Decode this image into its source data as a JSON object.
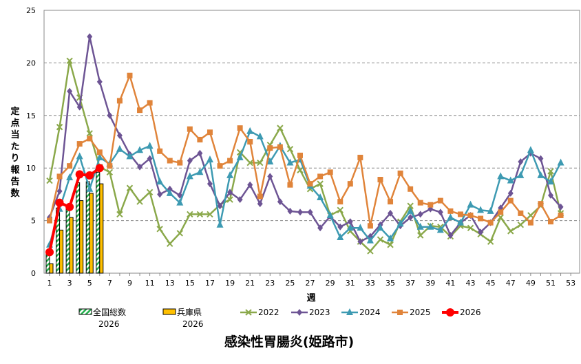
{
  "chart_data": {
    "type": "line",
    "title": "感染性胃腸炎(姫路市)",
    "xlabel": "週",
    "ylabel": "定点当たり報告数",
    "xlim": [
      1,
      53
    ],
    "ylim": [
      0,
      25
    ],
    "yticks": [
      0,
      5,
      10,
      15,
      20,
      25
    ],
    "xticks": [
      1,
      3,
      5,
      7,
      9,
      11,
      13,
      15,
      17,
      19,
      21,
      23,
      25,
      27,
      29,
      31,
      33,
      35,
      37,
      39,
      41,
      43,
      45,
      47,
      49,
      51,
      53
    ],
    "grid": "horizontal dashed",
    "legend": "bottom",
    "bars": [
      {
        "name": "全国総数",
        "sub": "2026",
        "color": "#22b04c",
        "pattern": "hatched",
        "x": [
          1,
          2,
          3,
          4,
          5,
          6
        ],
        "values": [
          1.8,
          6.2,
          6.4,
          8.6,
          8.7,
          9.6
        ]
      },
      {
        "name": "兵庫県",
        "sub": "2026",
        "color": "#ffc000",
        "x": [
          1,
          2,
          3,
          4,
          5,
          6
        ],
        "values": [
          0.9,
          4.1,
          5.3,
          6.9,
          7.6,
          8.5
        ]
      }
    ],
    "series": [
      {
        "name": "2022",
        "color": "#8aa84a",
        "marker": "x",
        "values": [
          8.8,
          13.9,
          20.2,
          16.7,
          13.3,
          10.1,
          9.6,
          5.6,
          8.1,
          6.8,
          7.7,
          4.2,
          2.8,
          3.8,
          5.6,
          5.6,
          5.6,
          6.5,
          7.0,
          11.5,
          10.5,
          10.5,
          12.2,
          13.8,
          11.8,
          9.8,
          8.0,
          8.5,
          5.5,
          6.0,
          4.0,
          3.0,
          2.1,
          3.2,
          2.7,
          4.9,
          6.4,
          3.6,
          4.5,
          4.4,
          3.5,
          4.5,
          4.3,
          3.7,
          3.0,
          5.3,
          4.0,
          4.6,
          5.5,
          6.4,
          9.7,
          5.7
        ]
      },
      {
        "name": "2023",
        "color": "#6d5494",
        "marker": "diamond",
        "values": [
          5.3,
          7.8,
          17.3,
          15.8,
          22.5,
          18.2,
          15.0,
          13.1,
          11.3,
          10.1,
          10.9,
          7.5,
          8.0,
          7.4,
          10.7,
          11.4,
          8.5,
          6.4,
          7.7,
          7.0,
          8.4,
          6.6,
          9.2,
          6.8,
          5.9,
          5.8,
          5.8,
          4.3,
          5.4,
          4.4,
          4.9,
          3.0,
          3.5,
          4.6,
          5.7,
          4.5,
          5.3,
          5.6,
          6.1,
          5.8,
          3.6,
          4.8,
          5.5,
          3.9,
          4.8,
          6.2,
          7.6,
          10.6,
          11.4,
          10.9,
          7.4,
          6.3
        ]
      },
      {
        "name": "2024",
        "color": "#3d9ab2",
        "marker": "triangle",
        "values": [
          2.7,
          6.1,
          9.1,
          11.1,
          8.0,
          11.0,
          10.4,
          11.8,
          11.1,
          11.7,
          12.1,
          8.7,
          7.6,
          6.7,
          9.2,
          9.6,
          10.8,
          4.6,
          9.3,
          11.0,
          13.5,
          13.0,
          10.6,
          12.1,
          10.5,
          10.8,
          8.3,
          7.2,
          5.5,
          3.4,
          4.3,
          4.3,
          3.1,
          4.3,
          3.3,
          4.7,
          5.9,
          4.4,
          4.4,
          4.1,
          5.3,
          4.8,
          6.5,
          6.0,
          5.9,
          9.2,
          8.8,
          9.3,
          11.7,
          9.3,
          8.7,
          10.5
        ]
      },
      {
        "name": "2025",
        "color": "#e0843a",
        "marker": "square",
        "values": [
          5.0,
          9.2,
          10.2,
          12.3,
          12.8,
          11.5,
          10.2,
          16.4,
          18.8,
          15.5,
          16.2,
          11.6,
          10.7,
          10.5,
          13.7,
          12.7,
          13.4,
          10.2,
          10.7,
          13.8,
          12.5,
          7.3,
          11.9,
          12.0,
          8.4,
          11.2,
          8.5,
          9.2,
          9.6,
          6.8,
          8.5,
          11.0,
          4.5,
          8.9,
          6.8,
          9.5,
          8.0,
          6.7,
          6.5,
          6.9,
          5.9,
          5.6,
          5.5,
          5.2,
          4.8,
          5.8,
          6.9,
          5.7,
          4.8,
          6.6,
          4.9,
          5.5
        ]
      },
      {
        "name": "2026",
        "color": "#ff0000",
        "marker": "circle",
        "values": [
          2.0,
          6.7,
          6.3,
          9.4,
          9.3,
          10.0
        ]
      }
    ]
  }
}
